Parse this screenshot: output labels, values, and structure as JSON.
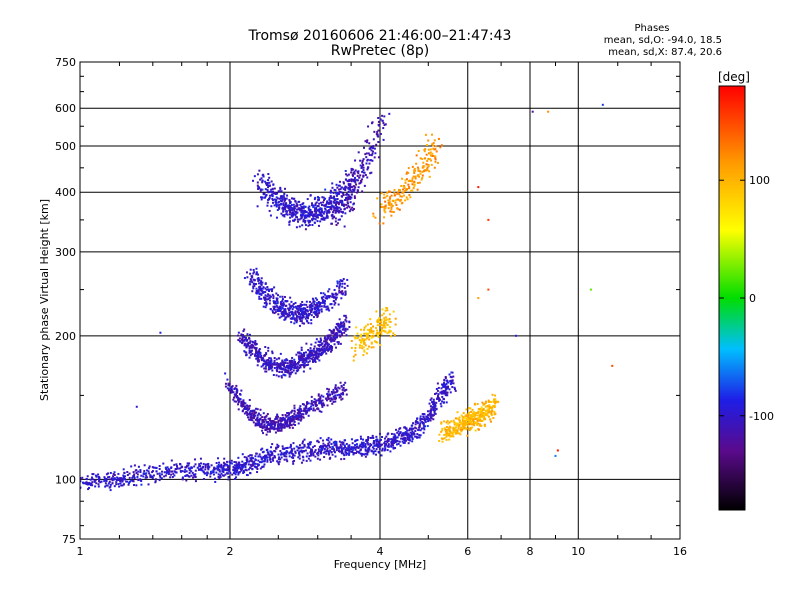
{
  "chart_data": {
    "type": "scatter",
    "title": "Tromsø 20160606 21:46:00–21:47:43",
    "subtitle": "RwPretec (8p)",
    "xlabel": "Frequency [MHz]",
    "ylabel": "Stationary phase Virtual Height [km]",
    "x_scale": "log",
    "y_scale": "log",
    "xlim": [
      1,
      16
    ],
    "ylim": [
      75,
      750
    ],
    "x_ticks": [
      1,
      2,
      4,
      6,
      8,
      10,
      16
    ],
    "x_tick_labels": [
      "1",
      "2",
      "4",
      "6",
      "8",
      "10",
      "16"
    ],
    "y_ticks": [
      75,
      100,
      200,
      300,
      400,
      500,
      600,
      750
    ],
    "y_tick_labels": [
      "75",
      "100",
      "200",
      "300",
      "400",
      "500",
      "600",
      "750"
    ],
    "grid": true,
    "stats_heading": "Phases",
    "stats_lines": [
      "mean, sd,O: -94.0, 18.5",
      "mean, sd,X: 87.4, 20.6"
    ],
    "colorbar": {
      "label": "[deg]",
      "range": [
        -180,
        180
      ],
      "ticks": [
        100,
        0,
        -100
      ],
      "tick_labels": [
        "100",
        "0",
        "-100"
      ]
    },
    "traces": [
      {
        "x": [
          1.0,
          1.1,
          1.2,
          1.3,
          1.45,
          1.6,
          1.75,
          1.9,
          2.0,
          2.1,
          2.2,
          2.35,
          2.5,
          2.7,
          2.9,
          3.1,
          3.3,
          3.5,
          3.7,
          3.9,
          4.1,
          4.3,
          4.5,
          4.7,
          5.0,
          5.2,
          5.4,
          5.6
        ],
        "y": [
          98,
          99,
          100,
          102,
          103,
          104,
          105,
          105,
          105,
          106,
          108,
          111,
          113,
          114,
          115,
          116,
          116,
          116,
          117,
          118,
          119,
          121,
          124,
          127,
          135,
          145,
          155,
          162
        ],
        "phase": -100,
        "spread": 0.035
      },
      {
        "x": [
          5.4,
          5.6,
          5.8,
          6.0,
          6.2,
          6.4,
          6.6,
          6.8
        ],
        "y": [
          125,
          128,
          130,
          132,
          134,
          136,
          140,
          145
        ],
        "phase": 100,
        "spread": 0.04
      },
      {
        "x": [
          2.0,
          2.1,
          2.2,
          2.3,
          2.4,
          2.5,
          2.6,
          2.7,
          2.8,
          3.0,
          3.2,
          3.4
        ],
        "y": [
          160,
          145,
          138,
          132,
          130,
          130,
          132,
          135,
          140,
          145,
          150,
          155
        ],
        "phase": -110,
        "spread": 0.03
      },
      {
        "x": [
          2.1,
          2.2,
          2.3,
          2.4,
          2.5,
          2.6,
          2.7,
          2.8,
          2.9,
          3.0,
          3.1,
          3.2,
          3.3,
          3.4
        ],
        "y": [
          200,
          190,
          180,
          175,
          172,
          172,
          174,
          178,
          182,
          185,
          190,
          195,
          205,
          215
        ],
        "phase": -105,
        "spread": 0.035
      },
      {
        "x": [
          2.2,
          2.3,
          2.4,
          2.5,
          2.6,
          2.7,
          2.8,
          2.9,
          3.0,
          3.2,
          3.4
        ],
        "y": [
          270,
          250,
          240,
          230,
          225,
          222,
          222,
          225,
          230,
          240,
          255
        ],
        "phase": -100,
        "spread": 0.04
      },
      {
        "x": [
          2.3,
          2.4,
          2.5,
          2.6,
          2.7,
          2.8,
          2.9,
          3.0,
          3.1,
          3.2,
          3.4,
          3.6
        ],
        "y": [
          430,
          400,
          380,
          370,
          365,
          362,
          362,
          365,
          370,
          380,
          400,
          430
        ],
        "phase": -100,
        "spread": 0.05
      },
      {
        "x": [
          3.2,
          3.4,
          3.6,
          3.8,
          4.0
        ],
        "y": [
          350,
          380,
          420,
          480,
          560
        ],
        "phase": -110,
        "spread": 0.05
      },
      {
        "x": [
          3.6,
          3.8,
          4.0,
          4.2
        ],
        "y": [
          190,
          200,
          210,
          215
        ],
        "phase": 95,
        "spread": 0.05
      },
      {
        "x": [
          4.0,
          4.3,
          4.6,
          4.9,
          5.2
        ],
        "y": [
          370,
          390,
          420,
          460,
          510
        ],
        "phase": 115,
        "spread": 0.05
      }
    ],
    "extra_points": [
      {
        "x": 8.1,
        "y": 590,
        "phase": -120
      },
      {
        "x": 8.7,
        "y": 590,
        "phase": 120
      },
      {
        "x": 11.2,
        "y": 610,
        "phase": -80
      },
      {
        "x": 6.3,
        "y": 410,
        "phase": 170
      },
      {
        "x": 6.6,
        "y": 350,
        "phase": 160
      },
      {
        "x": 6.3,
        "y": 240,
        "phase": 110
      },
      {
        "x": 6.6,
        "y": 250,
        "phase": 150
      },
      {
        "x": 10.6,
        "y": 250,
        "phase": 20
      },
      {
        "x": 11.7,
        "y": 173,
        "phase": 150
      },
      {
        "x": 9.1,
        "y": 115,
        "phase": 170
      },
      {
        "x": 9.0,
        "y": 112,
        "phase": -60
      },
      {
        "x": 7.5,
        "y": 200,
        "phase": -90
      },
      {
        "x": 1.45,
        "y": 203,
        "phase": -90
      },
      {
        "x": 1.3,
        "y": 142,
        "phase": -100
      }
    ]
  }
}
